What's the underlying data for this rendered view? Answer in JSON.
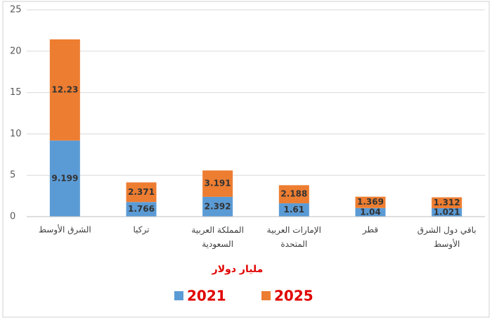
{
  "chart_data": {
    "type": "stacked_bar",
    "y_label": "مليار دولار",
    "categories": [
      "الشرق الأوسط",
      "تركيا",
      "المملكة العربية\nالسعودية",
      "الإمارات العربية\nالمتحدة",
      "قطر",
      "باقي دول الشرق\nالأوسط"
    ],
    "series": [
      {
        "name": "2021",
        "color": "#5b9bd5",
        "values": [
          9.199,
          1.766,
          2.392,
          1.61,
          1.04,
          1.021
        ]
      },
      {
        "name": "2025",
        "color": "#ed7d31",
        "values": [
          12.23,
          2.371,
          3.191,
          2.188,
          1.369,
          1.312
        ]
      }
    ],
    "ylim": [
      0,
      25
    ],
    "yticks": [
      0,
      5,
      10,
      15,
      20,
      25
    ],
    "grid": true
  }
}
